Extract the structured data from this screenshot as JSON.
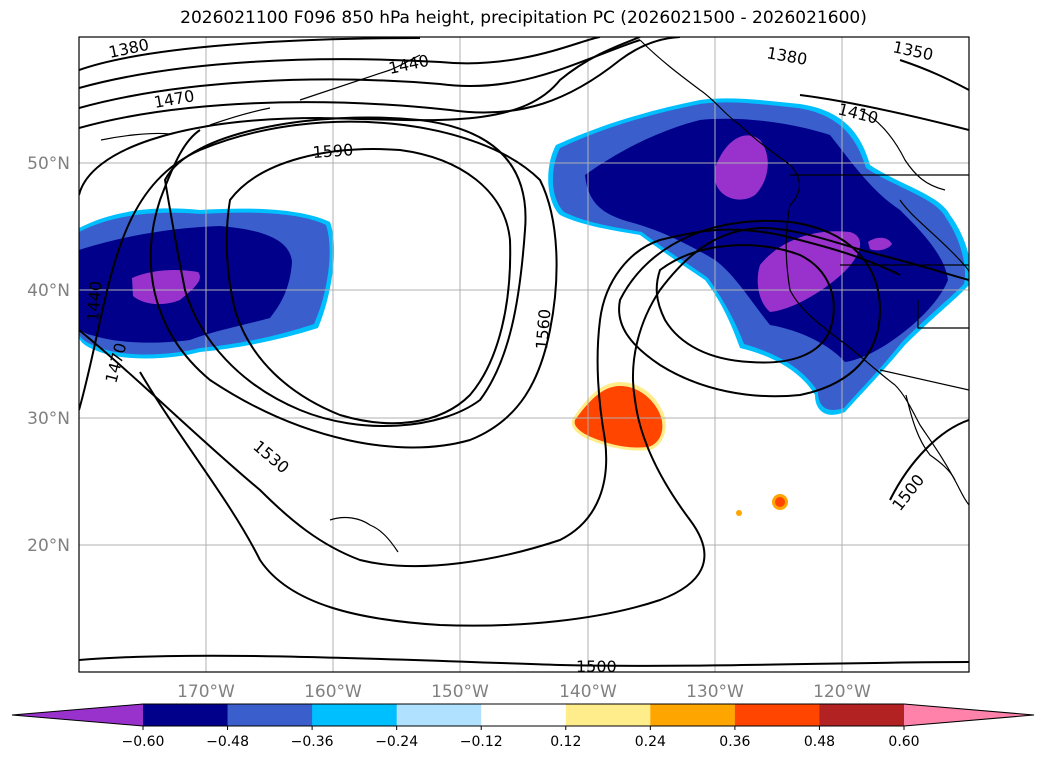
{
  "title": "2026021100 F096 850 hPa height, precipitation PC (2026021500 - 2026021600)",
  "map": {
    "lon_labels": [
      "170°W",
      "160°W",
      "150°W",
      "140°W",
      "130°W",
      "120°W"
    ],
    "lat_labels": [
      "50°N",
      "40°N",
      "30°N",
      "20°N"
    ],
    "contour_labels": [
      "1380",
      "1380",
      "1350",
      "1440",
      "1410",
      "1470",
      "1590",
      "1440",
      "1470",
      "1560",
      "1530",
      "1500",
      "1500"
    ],
    "contour_units": "850 hPa height",
    "shading": "precipitation PC"
  },
  "colorbar": {
    "ticks": [
      "−0.60",
      "−0.48",
      "−0.36",
      "−0.24",
      "−0.12",
      "0.12",
      "0.24",
      "0.36",
      "0.48",
      "0.60"
    ],
    "colors": [
      "#9932cc",
      "#00008b",
      "#3a5fcd",
      "#00bfff",
      "#b0e2ff",
      "#ffffff",
      "#ffec8b",
      "#ffa500",
      "#ff4500",
      "#b22222",
      "#ff82ab"
    ]
  }
}
